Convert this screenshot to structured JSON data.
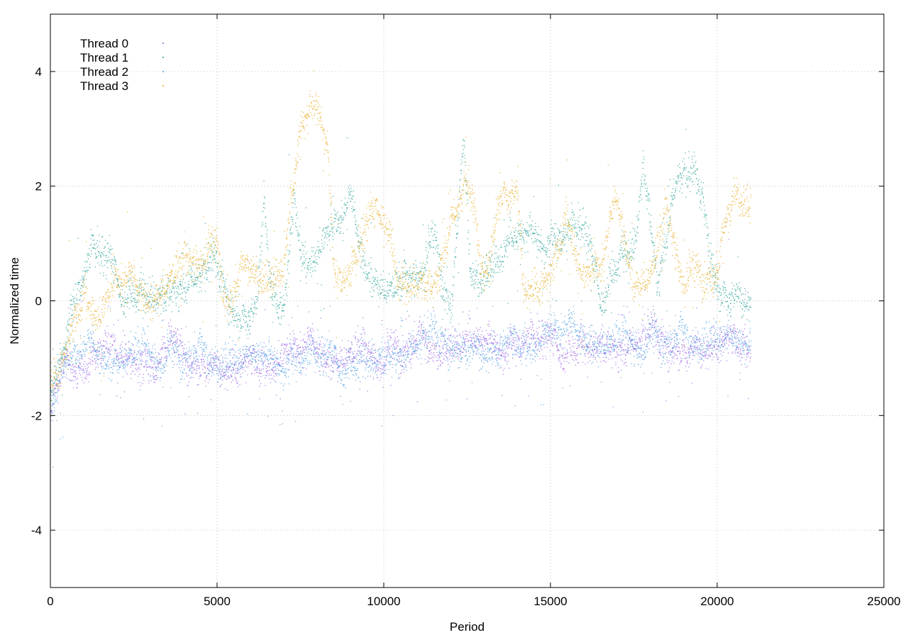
{
  "chart_data": {
    "type": "scatter",
    "xlabel": "Period",
    "ylabel": "Normalized time",
    "xlim": [
      0,
      25000
    ],
    "ylim": [
      -5,
      5
    ],
    "xticks": [
      0,
      5000,
      10000,
      15000,
      20000,
      25000
    ],
    "yticks": [
      -4,
      -2,
      0,
      2,
      4
    ],
    "grid": true,
    "legend_position": "top-left",
    "series": [
      {
        "name": "Thread 0",
        "color": "#9b5de5",
        "trend": [
          [
            0,
            -1.9
          ],
          [
            300,
            -1.3
          ],
          [
            1000,
            -1.05
          ],
          [
            3000,
            -1.0
          ],
          [
            5000,
            -1.0
          ],
          [
            6500,
            -1.05
          ],
          [
            8000,
            -1.0
          ],
          [
            10000,
            -1.0
          ],
          [
            11000,
            -0.8
          ],
          [
            12000,
            -0.75
          ],
          [
            14000,
            -0.7
          ],
          [
            15000,
            -0.65
          ],
          [
            16000,
            -0.7
          ],
          [
            17000,
            -0.75
          ],
          [
            18000,
            -0.7
          ],
          [
            19000,
            -0.75
          ],
          [
            20000,
            -0.6
          ],
          [
            21000,
            -0.75
          ]
        ]
      },
      {
        "name": "Thread 1",
        "color": "#2aa198",
        "trend": [
          [
            0,
            -1.6
          ],
          [
            300,
            -0.8
          ],
          [
            800,
            0.2
          ],
          [
            1300,
            0.9
          ],
          [
            1800,
            0.7
          ],
          [
            2200,
            0.3
          ],
          [
            2800,
            0.2
          ],
          [
            3300,
            0.1
          ],
          [
            3800,
            0.3
          ],
          [
            4300,
            0.4
          ],
          [
            5000,
            0.5
          ],
          [
            5600,
            -0.2
          ],
          [
            6200,
            0.0
          ],
          [
            6400,
            2.1
          ],
          [
            6600,
            0.4
          ],
          [
            7000,
            -0.1
          ],
          [
            7300,
            1.7
          ],
          [
            7600,
            0.7
          ],
          [
            8000,
            0.9
          ],
          [
            8500,
            1.1
          ],
          [
            9000,
            1.5
          ],
          [
            9400,
            0.6
          ],
          [
            10000,
            0.2
          ],
          [
            10500,
            0.1
          ],
          [
            11000,
            0.5
          ],
          [
            11500,
            1.0
          ],
          [
            12000,
            -0.2
          ],
          [
            12400,
            2.6
          ],
          [
            12600,
            0.5
          ],
          [
            13000,
            0.5
          ],
          [
            13500,
            0.8
          ],
          [
            14000,
            1.1
          ],
          [
            14500,
            1.2
          ],
          [
            15000,
            1.1
          ],
          [
            15500,
            1.2
          ],
          [
            16000,
            1.3
          ],
          [
            16500,
            0.2
          ],
          [
            17000,
            0.8
          ],
          [
            17500,
            1.0
          ],
          [
            17800,
            2.4
          ],
          [
            18200,
            0.4
          ],
          [
            18800,
            2.2
          ],
          [
            19500,
            1.9
          ],
          [
            20000,
            0.3
          ],
          [
            20500,
            0.2
          ],
          [
            21000,
            0.2
          ]
        ]
      },
      {
        "name": "Thread 2",
        "color": "#4b9fe0",
        "trend": [
          [
            0,
            -1.9
          ],
          [
            300,
            -1.3
          ],
          [
            1000,
            -1.05
          ],
          [
            3000,
            -1.0
          ],
          [
            5000,
            -1.0
          ],
          [
            6500,
            -1.0
          ],
          [
            8000,
            -0.95
          ],
          [
            10000,
            -0.95
          ],
          [
            11000,
            -0.75
          ],
          [
            12000,
            -0.7
          ],
          [
            14000,
            -0.7
          ],
          [
            15000,
            -0.7
          ],
          [
            16000,
            -0.7
          ],
          [
            17000,
            -0.8
          ],
          [
            18000,
            -0.75
          ],
          [
            19000,
            -0.7
          ],
          [
            20000,
            -0.6
          ],
          [
            21000,
            -0.85
          ]
        ]
      },
      {
        "name": "Thread 3",
        "color": "#e6a817",
        "trend": [
          [
            0,
            -1.4
          ],
          [
            500,
            -0.8
          ],
          [
            1000,
            0.2
          ],
          [
            1500,
            -0.3
          ],
          [
            2000,
            0.2
          ],
          [
            2500,
            0.1
          ],
          [
            3000,
            0.0
          ],
          [
            3500,
            0.3
          ],
          [
            4000,
            0.5
          ],
          [
            4500,
            0.8
          ],
          [
            5000,
            0.85
          ],
          [
            5300,
            -0.1
          ],
          [
            6000,
            0.65
          ],
          [
            6600,
            0.4
          ],
          [
            7000,
            0.6
          ],
          [
            7500,
            3.0
          ],
          [
            8000,
            3.5
          ],
          [
            8300,
            3.0
          ],
          [
            8500,
            0.5
          ],
          [
            9000,
            0.4
          ],
          [
            9500,
            1.4
          ],
          [
            10000,
            1.8
          ],
          [
            10500,
            0.3
          ],
          [
            11000,
            0.4
          ],
          [
            11500,
            0.3
          ],
          [
            12000,
            1.4
          ],
          [
            12500,
            2.0
          ],
          [
            13000,
            0.3
          ],
          [
            13500,
            2.0
          ],
          [
            14000,
            2.0
          ],
          [
            14200,
            0.4
          ],
          [
            15000,
            0.4
          ],
          [
            15500,
            1.6
          ],
          [
            16000,
            0.3
          ],
          [
            16500,
            0.4
          ],
          [
            17000,
            1.6
          ],
          [
            17500,
            0.3
          ],
          [
            18000,
            0.4
          ],
          [
            18500,
            1.4
          ],
          [
            19000,
            0.4
          ],
          [
            20000,
            0.4
          ],
          [
            20500,
            2.0
          ],
          [
            21000,
            1.7
          ]
        ]
      }
    ]
  }
}
